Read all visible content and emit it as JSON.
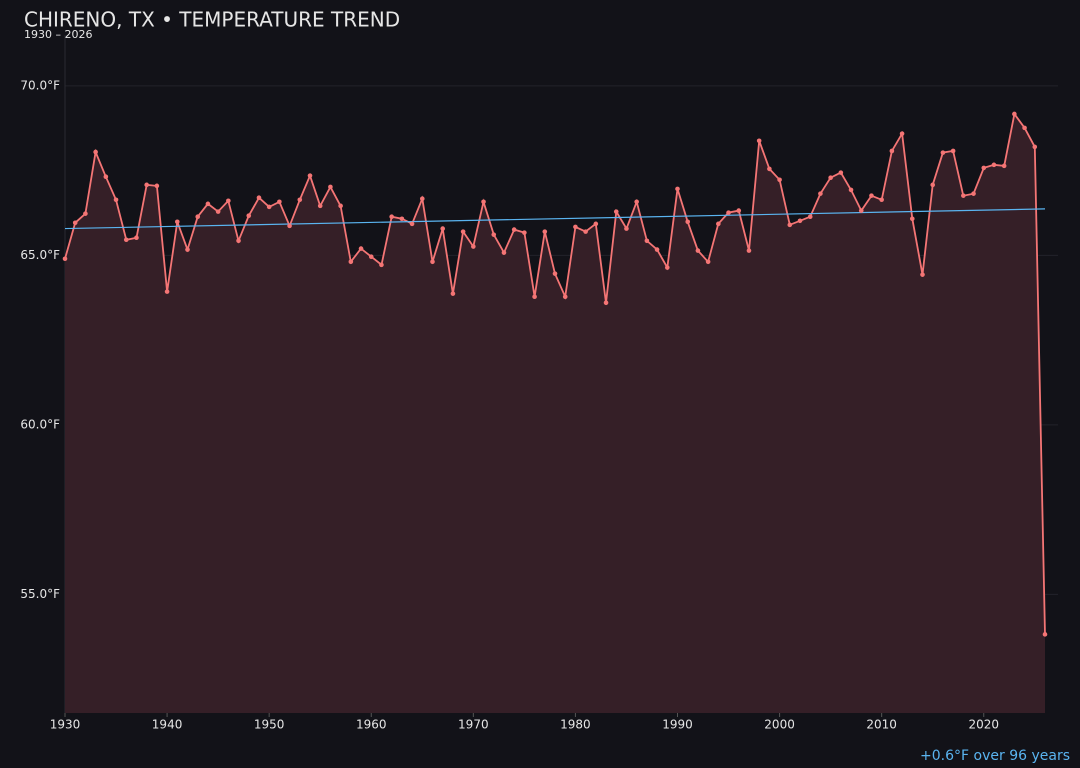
{
  "chart_data": {
    "type": "line",
    "title": "CHIRENO, TX • TEMPERATURE TREND",
    "subtitle": "1930 – 2026",
    "annotation": "+0.6°F over 96 years",
    "color": "#f47575",
    "area_color": "#351f27",
    "x": [
      1930,
      1931,
      1932,
      1933,
      1934,
      1935,
      1936,
      1937,
      1938,
      1939,
      1940,
      1941,
      1942,
      1943,
      1944,
      1945,
      1946,
      1947,
      1948,
      1949,
      1950,
      1951,
      1952,
      1953,
      1954,
      1955,
      1956,
      1957,
      1958,
      1959,
      1960,
      1961,
      1962,
      1963,
      1964,
      1965,
      1966,
      1967,
      1968,
      1969,
      1970,
      1971,
      1972,
      1973,
      1974,
      1975,
      1976,
      1977,
      1978,
      1979,
      1980,
      1981,
      1982,
      1983,
      1984,
      1985,
      1986,
      1987,
      1988,
      1989,
      1990,
      1991,
      1992,
      1993,
      1994,
      1995,
      1996,
      1997,
      1998,
      1999,
      2000,
      2001,
      2002,
      2003,
      2004,
      2005,
      2006,
      2007,
      2008,
      2009,
      2010,
      2011,
      2012,
      2013,
      2014,
      2015,
      2016,
      2017,
      2018,
      2019,
      2020,
      2021,
      2022,
      2023,
      2024,
      2025,
      2026
    ],
    "values": [
      64.9,
      65.96,
      66.23,
      68.05,
      67.32,
      66.64,
      65.46,
      65.52,
      67.08,
      67.05,
      63.93,
      65.99,
      65.17,
      66.14,
      66.52,
      66.29,
      66.61,
      65.43,
      66.17,
      66.7,
      66.43,
      66.58,
      65.87,
      66.64,
      67.35,
      66.46,
      67.02,
      66.46,
      64.81,
      65.2,
      64.96,
      64.72,
      66.14,
      66.08,
      65.93,
      66.67,
      64.81,
      65.79,
      63.87,
      65.7,
      65.26,
      66.58,
      65.61,
      65.08,
      65.76,
      65.67,
      63.78,
      65.7,
      64.46,
      63.78,
      65.84,
      65.7,
      65.93,
      63.6,
      66.29,
      65.79,
      66.58,
      65.43,
      65.17,
      64.64,
      66.96,
      65.99,
      65.14,
      64.81,
      65.93,
      66.26,
      66.32,
      65.14,
      68.38,
      67.55,
      67.23,
      65.9,
      66.02,
      66.14,
      66.82,
      67.29,
      67.44,
      66.93,
      66.32,
      66.76,
      66.64,
      68.08,
      68.59,
      66.08,
      64.43,
      67.08,
      68.03,
      68.08,
      66.76,
      66.82,
      67.58,
      67.67,
      67.64,
      69.17,
      68.76,
      68.2,
      53.82
    ],
    "trend": {
      "x": [
        1930,
        2026
      ],
      "values": [
        65.79,
        66.37
      ],
      "color": "#5ab4f0"
    },
    "xlim": [
      1930,
      2026
    ],
    "ylim": [
      51.5,
      71.5
    ],
    "xticks": [
      1930,
      1940,
      1950,
      1960,
      1970,
      1980,
      1990,
      2000,
      2010,
      2020
    ],
    "yticks": [
      {
        "value": 55,
        "label": "55.0°F"
      },
      {
        "value": 60,
        "label": "60.0°F"
      },
      {
        "value": 65,
        "label": "65.0°F"
      },
      {
        "value": 70,
        "label": "70.0°F"
      }
    ],
    "grid": true
  }
}
